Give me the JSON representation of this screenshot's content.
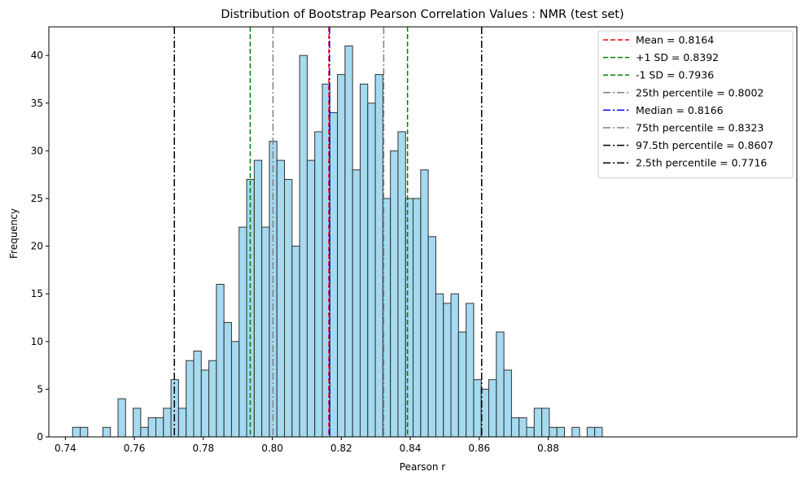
{
  "chart_data": {
    "type": "bar",
    "title": "Distribution of Bootstrap Pearson Correlation Values : NMR (test set)",
    "xlabel": "Pearson r",
    "ylabel": "Frequency",
    "xlim": [
      0.7352,
      0.9521
    ],
    "ylim": [
      0,
      43
    ],
    "xticks": [
      0.74,
      0.76,
      0.78,
      0.8,
      0.82,
      0.84,
      0.86,
      0.88
    ],
    "xtick_labels": [
      "0.74",
      "0.76",
      "0.78",
      "0.80",
      "0.82",
      "0.84",
      "0.86",
      "0.88"
    ],
    "yticks": [
      0,
      5,
      10,
      15,
      20,
      25,
      30,
      35,
      40
    ],
    "ytick_labels": [
      "0",
      "5",
      "10",
      "15",
      "20",
      "25",
      "30",
      "35",
      "40"
    ],
    "grid": false,
    "legend_position": "top-right",
    "bar_color": "#87ceeb",
    "bar_edge_color": "#333333",
    "bin_start": 0.7421,
    "bin_width": 0.002194,
    "values": [
      1,
      1,
      0,
      0,
      1,
      0,
      4,
      0,
      3,
      1,
      2,
      2,
      3,
      6,
      3,
      8,
      9,
      7,
      8,
      16,
      12,
      10,
      22,
      27,
      29,
      22,
      31,
      29,
      27,
      20,
      40,
      29,
      32,
      37,
      34,
      38,
      41,
      28,
      37,
      35,
      38,
      25,
      30,
      32,
      25,
      25,
      28,
      21,
      15,
      14,
      15,
      11,
      14,
      6,
      5,
      6,
      11,
      7,
      2,
      2,
      1,
      3,
      3,
      1,
      1,
      0,
      1,
      0,
      1,
      1
    ],
    "reference_lines": [
      {
        "label": "Mean = 0.8164",
        "x": 0.8164,
        "color": "#ff0000",
        "style": "dashed"
      },
      {
        "label": "+1 SD = 0.8392",
        "x": 0.8392,
        "color": "#008000",
        "style": "dashed"
      },
      {
        "label": "-1 SD = 0.7936",
        "x": 0.7936,
        "color": "#008000",
        "style": "dashed"
      },
      {
        "label": "25th percentile = 0.8002",
        "x": 0.8002,
        "color": "#808080",
        "style": "dashdot"
      },
      {
        "label": "Median = 0.8166",
        "x": 0.8166,
        "color": "#0000ff",
        "style": "dashdot"
      },
      {
        "label": "75th percentile = 0.8323",
        "x": 0.8323,
        "color": "#808080",
        "style": "dashdot"
      },
      {
        "label": "97.5th percentile = 0.8607",
        "x": 0.8607,
        "color": "#000000",
        "style": "dashdot"
      },
      {
        "label": "2.5th percentile = 0.7716",
        "x": 0.7716,
        "color": "#000000",
        "style": "dashdot"
      }
    ]
  }
}
